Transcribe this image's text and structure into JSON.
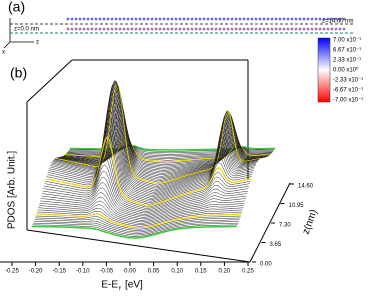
{
  "panel_a": {
    "label": "(a)",
    "z_start": "z=0.0 nm",
    "z_end": "z=14.60 nm",
    "axis_x": "x",
    "axis_z": "z"
  },
  "colorbar": {
    "ticks": [
      "7.00 x10⁻¹",
      "6.67 x10⁻¹",
      "2.33 x10⁻¹",
      "0.00 x10⁰",
      "-2.33 x10⁻¹",
      "-6.67 x10⁻¹",
      "-7.00 x10⁻¹"
    ]
  },
  "panel_b": {
    "label": "(b)",
    "y_label": "PDOS [Arb. Unit.]",
    "x_label_main": "E-E",
    "x_label_sub": "f",
    "x_label_unit": "[eV]",
    "x_ticks": [
      "-0.25",
      "-0.20",
      "-0.15",
      "-0.10",
      "-0.05",
      "0.00",
      "0.05",
      "0.10",
      "0.15",
      "0.20",
      "0.25"
    ],
    "z_label": "z(nm)",
    "z_ticks": [
      "0.00",
      "3.65",
      "7.30",
      "10.95",
      "14.60"
    ]
  }
}
